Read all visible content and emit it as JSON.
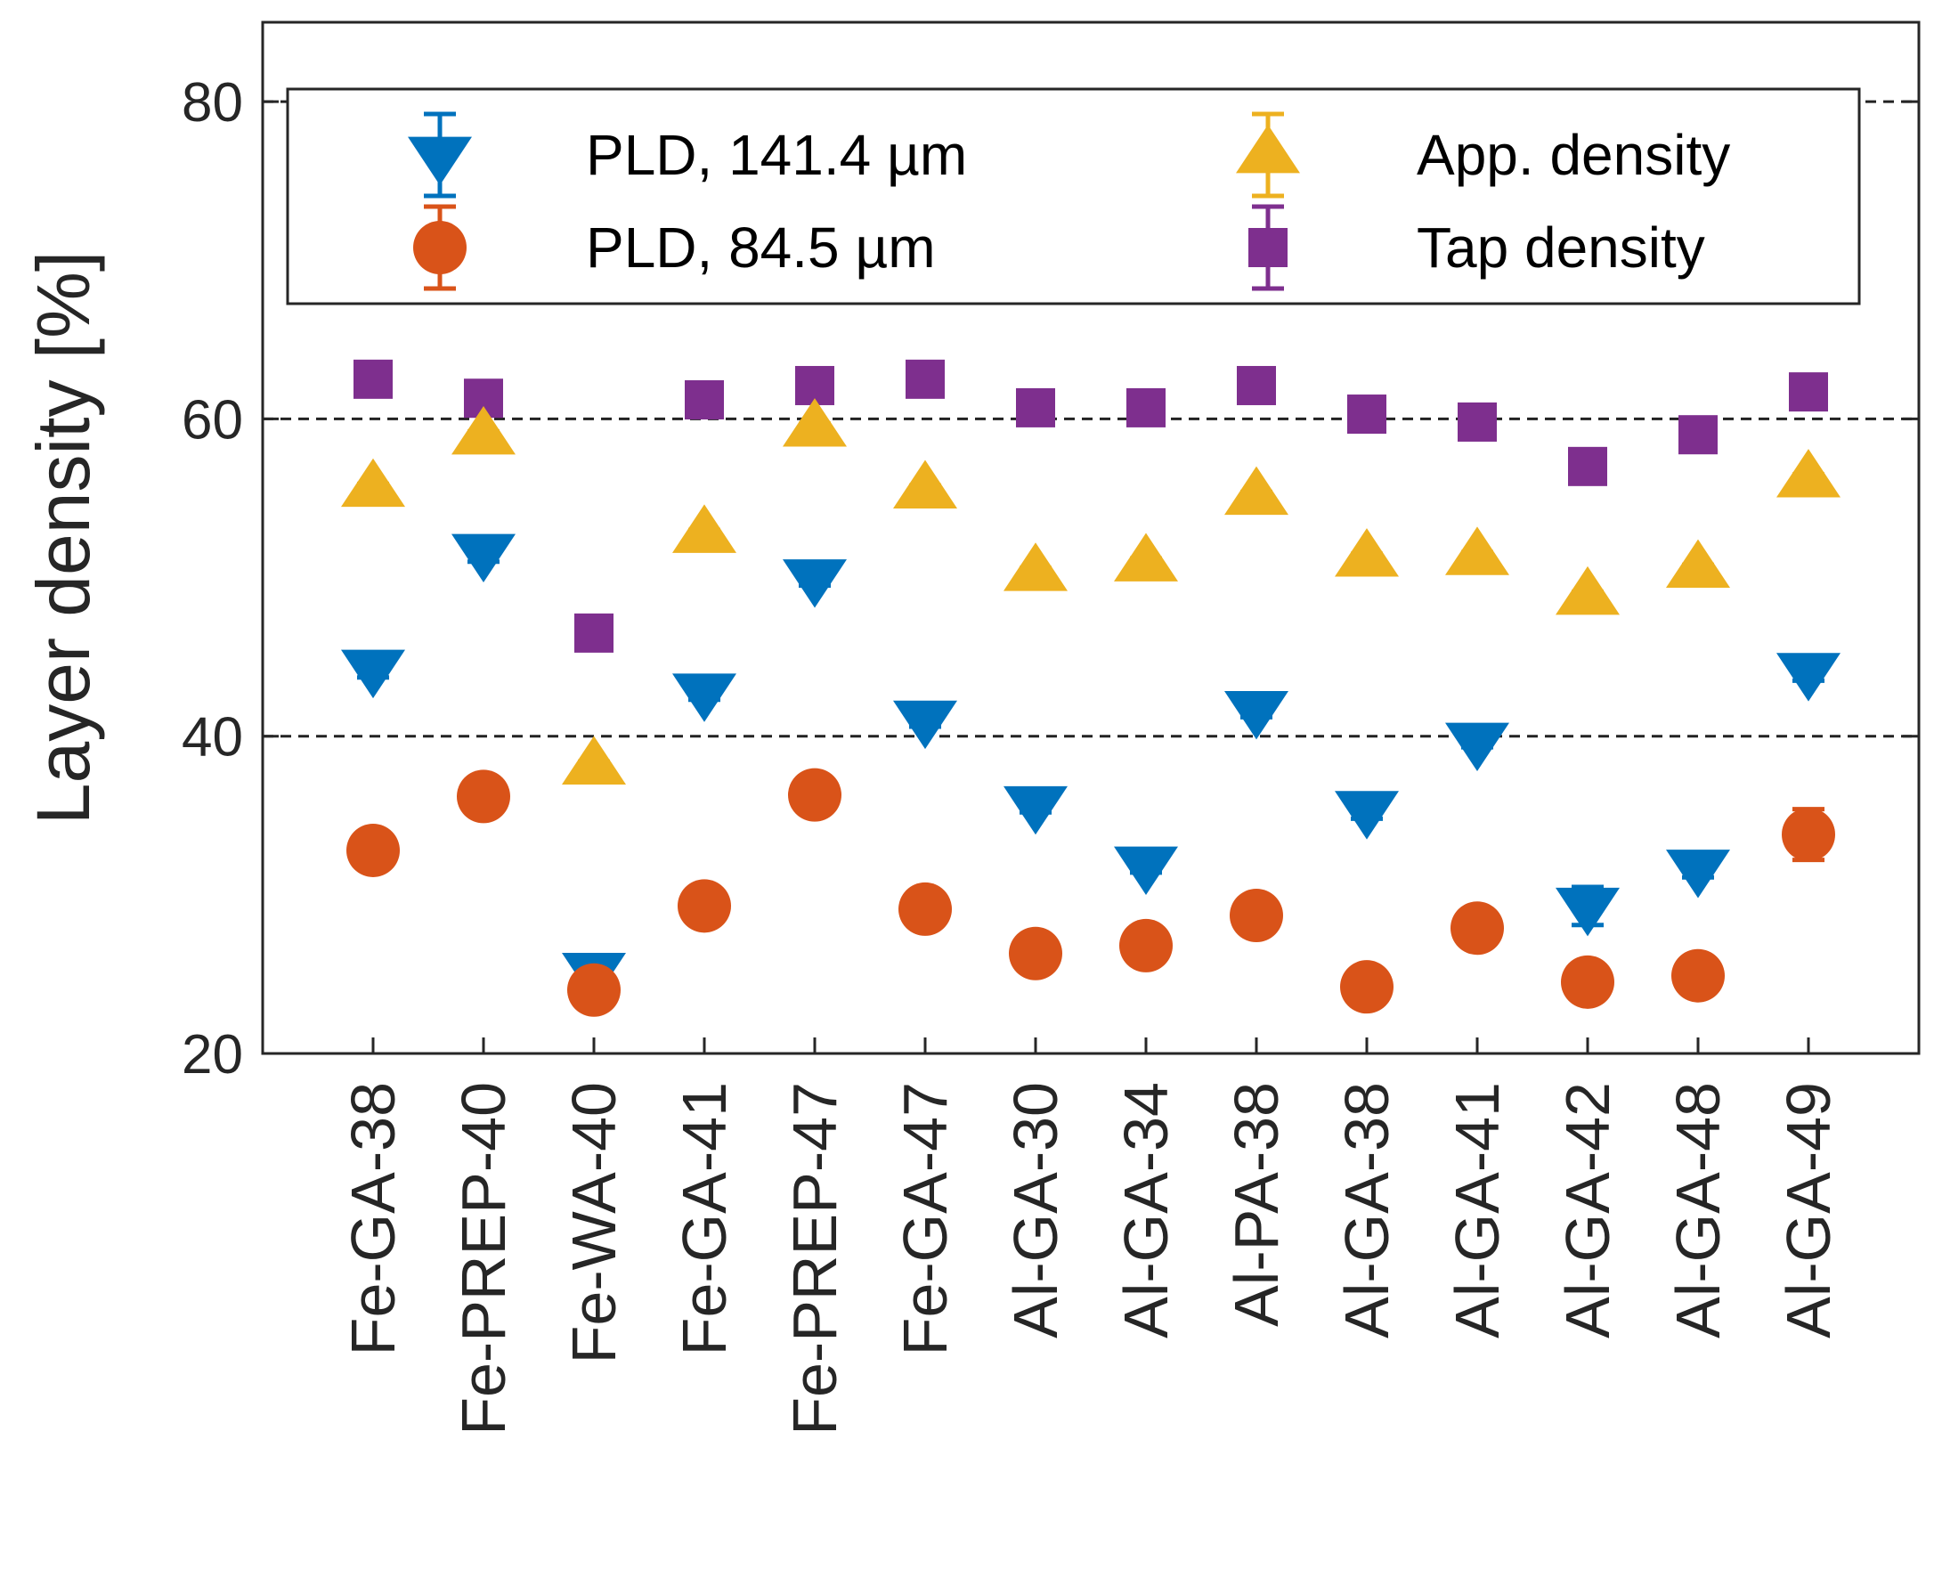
{
  "chart_data": {
    "type": "scatter",
    "title": "",
    "xlabel": "",
    "ylabel": "Layer density [%]",
    "ylim": [
      20,
      85
    ],
    "xlim": [
      0,
      15
    ],
    "yticks": [
      20,
      40,
      60,
      80
    ],
    "grid_dashed_at": [
      40,
      60,
      80
    ],
    "legend_position": "top",
    "categories": [
      "Fe-GA-38",
      "Fe-PREP-40",
      "Fe-WA-40",
      "Fe-GA-41",
      "Fe-PREP-47",
      "Fe-GA-47",
      "Al-GA-30",
      "Al-GA-34",
      "Al-PA-38",
      "Al-GA-38",
      "Al-GA-41",
      "Al-GA-42",
      "Al-GA-48",
      "Al-GA-49"
    ],
    "series": [
      {
        "name": "PLD, 141.4 µm",
        "marker": "triangle-down",
        "color": "#0072BD",
        "values": [
          44.3,
          51.6,
          25.2,
          42.8,
          50.0,
          41.1,
          35.7,
          31.9,
          41.7,
          35.4,
          39.7,
          29.3,
          31.7,
          44.1
        ],
        "errors": [
          0.6,
          0.6,
          0.4,
          0.5,
          0.5,
          0.5,
          0.5,
          0.5,
          0.5,
          0.6,
          0.4,
          1.2,
          0.6,
          0.6
        ]
      },
      {
        "name": "PLD, 84.5 µm",
        "marker": "circle",
        "color": "#D95319",
        "values": [
          32.8,
          36.2,
          24.0,
          29.3,
          36.3,
          29.1,
          26.3,
          26.8,
          28.7,
          24.2,
          27.9,
          24.5,
          24.9,
          33.8
        ],
        "errors": [
          0.3,
          0.3,
          0.3,
          0.3,
          0.3,
          0.3,
          0.3,
          0.4,
          0.3,
          0.3,
          0.3,
          0.3,
          0.3,
          1.6
        ]
      },
      {
        "name": "App. density",
        "marker": "triangle-up",
        "color": "#EDB120",
        "values": [
          55.6,
          58.9,
          38.1,
          52.7,
          59.4,
          55.5,
          50.3,
          50.9,
          55.1,
          51.2,
          51.3,
          48.8,
          50.5,
          56.2
        ],
        "errors": [
          0.3,
          0.3,
          0.3,
          0.3,
          0.3,
          0.3,
          0.3,
          0.3,
          0.3,
          0.3,
          0.3,
          0.3,
          0.3,
          0.3
        ]
      },
      {
        "name": "Tap density",
        "marker": "square",
        "color": "#7E2F8E",
        "values": [
          62.5,
          61.3,
          46.5,
          61.2,
          62.1,
          62.5,
          60.7,
          60.7,
          62.1,
          60.3,
          59.8,
          57.0,
          59.0,
          61.7
        ],
        "errors": [
          0.5,
          0.8,
          0.5,
          0.6,
          1.0,
          0.6,
          0.5,
          0.5,
          0.7,
          0.5,
          0.6,
          0.6,
          0.6,
          0.7
        ]
      }
    ]
  }
}
